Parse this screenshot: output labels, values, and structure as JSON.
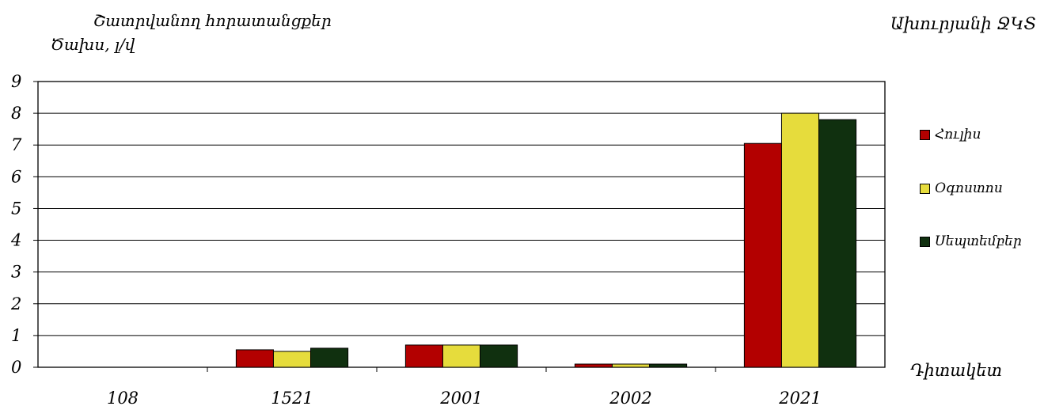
{
  "chart_data": {
    "type": "bar",
    "title": "Ախուրյանի ՋԿՏ",
    "subtitle": "Շատրվանող հորատանցքեր",
    "ylabel": "Ծախս, լ/վ",
    "xlabel": "Դիտակետ",
    "categories": [
      "108",
      "1521",
      "2001",
      "2002",
      "2021"
    ],
    "series": [
      {
        "name": "Հուլիս",
        "color": "#b30000",
        "values": [
          0,
          0.55,
          0.7,
          0.1,
          7.05
        ]
      },
      {
        "name": "Օգոստոս",
        "color": "#e6dc3c",
        "values": [
          0,
          0.5,
          0.7,
          0.1,
          8.0
        ]
      },
      {
        "name": "Սեպտեմբեր",
        "color": "#10300f",
        "values": [
          0,
          0.6,
          0.7,
          0.1,
          7.8
        ]
      }
    ],
    "ylim": [
      0,
      9
    ],
    "yticks": [
      0,
      1,
      2,
      3,
      4,
      5,
      6,
      7,
      8,
      9
    ],
    "grid": true,
    "legend_position": "right"
  }
}
